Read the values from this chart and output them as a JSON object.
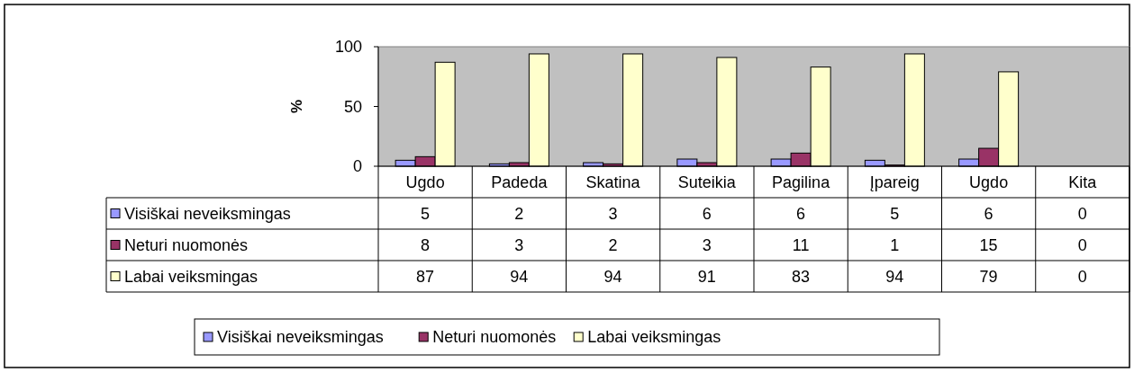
{
  "chart_data": {
    "type": "bar",
    "ylabel": "%",
    "categories": [
      "Ugdo",
      "Padeda",
      "Skatina",
      "Suteikia",
      "Pagilina",
      "Įpareig",
      "Ugdo",
      "Kita"
    ],
    "series": [
      {
        "name": "Visiškai neveiksmingas",
        "color": "#9999ff",
        "values": [
          5,
          2,
          3,
          6,
          6,
          5,
          6,
          0
        ]
      },
      {
        "name": "Neturi nuomonės",
        "color": "#993366",
        "values": [
          8,
          3,
          2,
          3,
          11,
          1,
          15,
          0
        ]
      },
      {
        "name": "Labai veiksmingas",
        "color": "#ffffcc",
        "values": [
          87,
          94,
          94,
          91,
          83,
          94,
          79,
          0
        ]
      }
    ],
    "ylim": [
      0,
      100
    ],
    "yticks": [
      0,
      50,
      100
    ],
    "data_labels": true,
    "legend": "bottom"
  }
}
